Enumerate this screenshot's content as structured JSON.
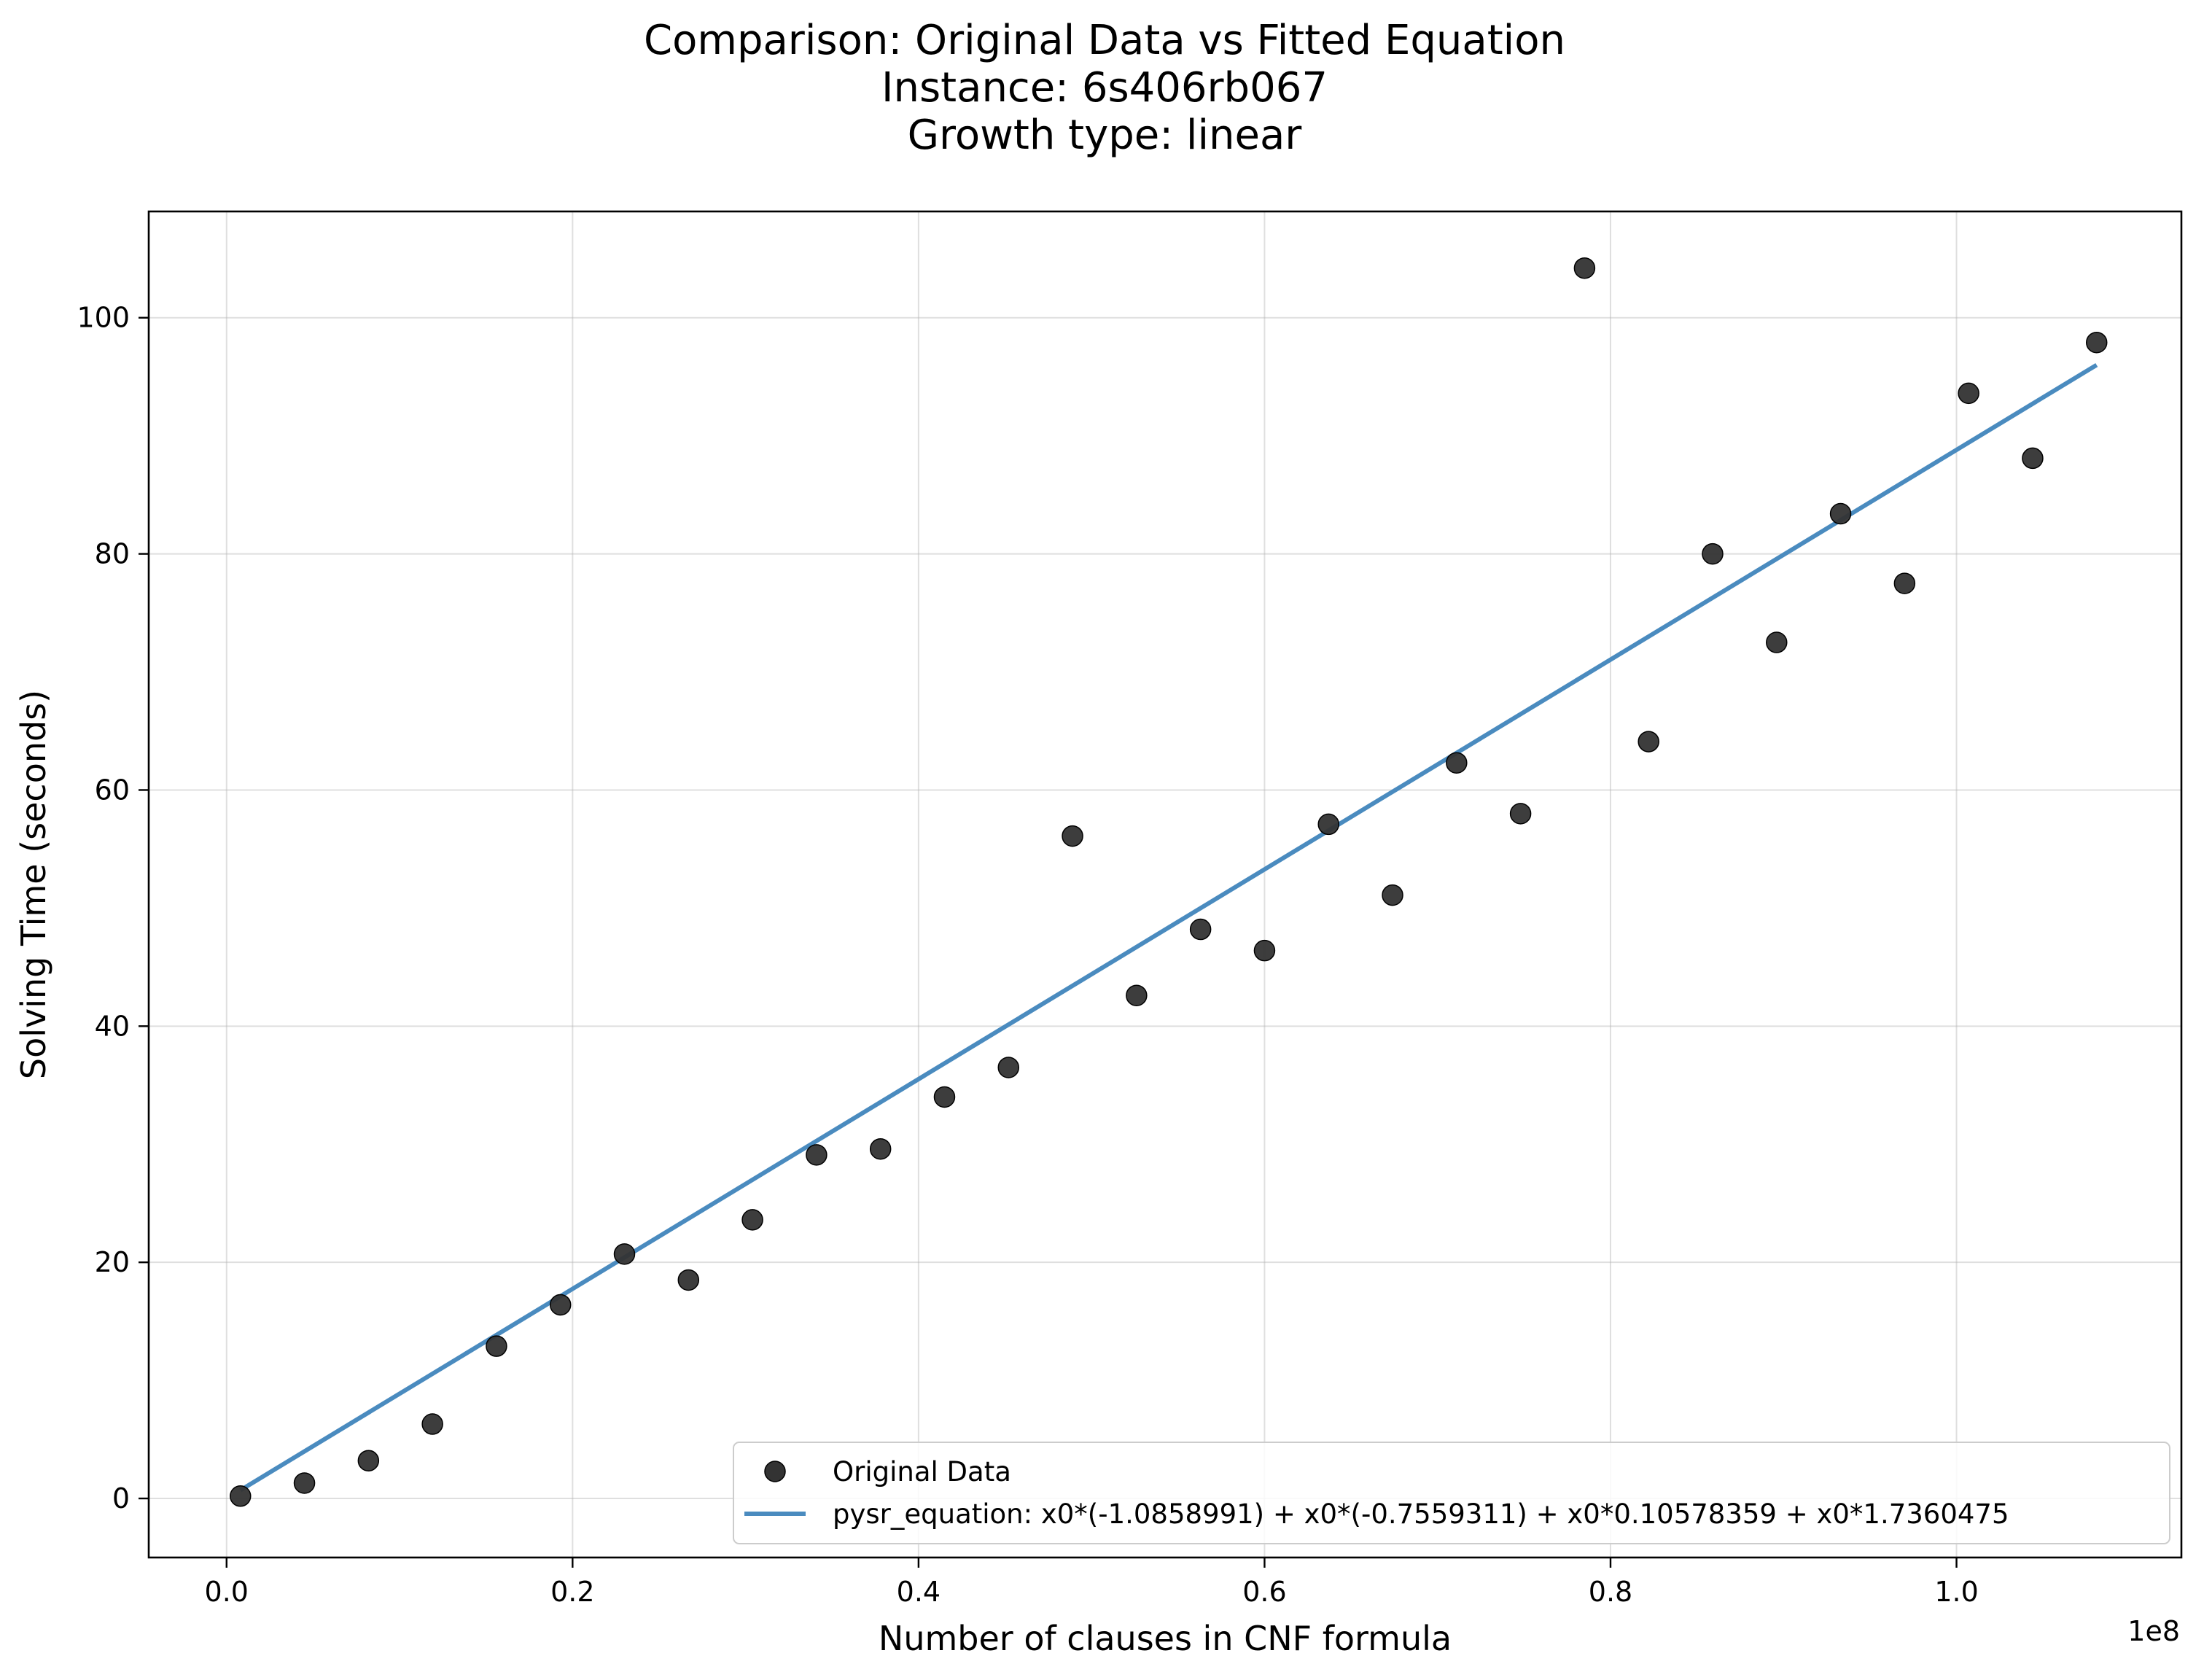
{
  "chart_data": {
    "type": "scatter",
    "title": [
      "Comparison: Original Data vs Fitted Equation",
      "Instance: 6s406rb067",
      "Growth type: linear"
    ],
    "xlabel": "Number of clauses in CNF formula",
    "ylabel": "Solving Time (seconds)",
    "x_scale_label": "1e8",
    "xlim": [
      -0.045,
      1.13
    ],
    "ylim": [
      -5,
      109
    ],
    "x_ticks": [
      0.0,
      0.2,
      0.4,
      0.6,
      0.8,
      1.0
    ],
    "x_tick_labels": [
      "0.0",
      "0.2",
      "0.4",
      "0.6",
      "0.8",
      "1.0"
    ],
    "y_ticks": [
      0,
      20,
      40,
      60,
      80,
      100
    ],
    "y_tick_labels": [
      "0",
      "20",
      "40",
      "60",
      "80",
      "100"
    ],
    "grid": true,
    "legend_position": "lower-right",
    "series": [
      {
        "name": "Original Data",
        "kind": "scatter",
        "color": "#333333",
        "x": [
          0.008,
          0.045,
          0.082,
          0.119,
          0.156,
          0.193,
          0.23,
          0.267,
          0.304,
          0.341,
          0.378,
          0.415,
          0.452,
          0.489,
          0.526,
          0.563,
          0.6,
          0.637,
          0.674,
          0.711,
          0.748,
          0.785,
          0.822,
          0.859,
          0.896,
          0.933,
          0.97,
          1.007,
          1.044,
          1.081
        ],
        "y": [
          0.2,
          1.3,
          3.2,
          6.3,
          12.9,
          16.4,
          20.7,
          18.5,
          23.6,
          29.1,
          29.6,
          34.0,
          36.5,
          56.1,
          42.6,
          48.2,
          46.4,
          57.1,
          51.1,
          62.3,
          58.0,
          104.2,
          64.1,
          80.0,
          72.5,
          83.4,
          77.5,
          93.6,
          88.1,
          97.9
        ]
      },
      {
        "name": "pysr_equation: x0*(-1.0858991) + x0*(-0.7559311) + x0*0.10578359 + x0*1.7360475",
        "kind": "line",
        "color": "#4a8bbf",
        "x": [
          0.008,
          1.081
        ],
        "y": [
          0.7,
          96.0
        ]
      }
    ]
  }
}
